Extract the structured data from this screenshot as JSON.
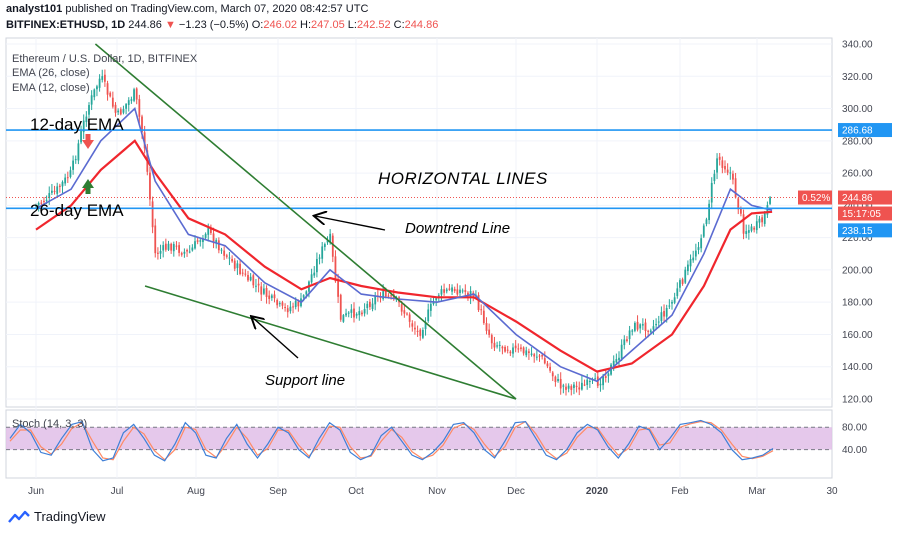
{
  "header": {
    "publisher": "analyst101",
    "published_text": "published on TradingView.com, March 07, 2020 08:42:57 UTC",
    "symbol": "BITFINEX:ETHUSD, 1D",
    "last": "244.86",
    "change": "−1.23 (−0.5%)",
    "o_label": "O:",
    "o": "246.02",
    "h_label": "H:",
    "h": "247.05",
    "l_label": "L:",
    "l": "242.52",
    "c_label": "C:",
    "c": "244.86"
  },
  "legend": {
    "title": "Ethereum / U.S. Dollar, 1D, BITFINEX",
    "ema26": "EMA (26, close)",
    "ema12": "EMA (12, close)"
  },
  "annotations": {
    "ema12": "12-day EMA",
    "ema26": "26-day EMA",
    "horizontal": "HORIZONTAL LINES",
    "downtrend": "Downtrend Line",
    "support": "Support line"
  },
  "badges": {
    "resistance": "286.68",
    "pct": "0.52%",
    "price": "244.86",
    "countdown": "15:17:05",
    "support_level": "238.15"
  },
  "stoch": {
    "label": "Stoch (14, 3, 3)",
    "levels": [
      "80.00",
      "40.00"
    ]
  },
  "footer": {
    "brand": "TradingView"
  },
  "colors": {
    "up": "#26a69a",
    "down": "#ef5350",
    "ema12": "#5b6bd1",
    "ema26": "#f0262d",
    "trend": "#2e7d32",
    "hline": "#2196f3",
    "stoch_bg": "#e1bee7",
    "k": "#3f7fd6",
    "d": "#ff8a65"
  },
  "chart_data": {
    "type": "candlestick",
    "price_axis": {
      "min": 120,
      "max": 340,
      "ticks": [
        "340.00",
        "320.00",
        "300.00",
        "280.00",
        "260.00",
        "240.00",
        "220.00",
        "200.00",
        "180.00",
        "160.00",
        "140.00",
        "120.00"
      ]
    },
    "time_axis": [
      "Jun",
      "Jul",
      "Aug",
      "Sep",
      "Oct",
      "Nov",
      "Dec",
      "2020",
      "Feb",
      "Mar",
      "30"
    ],
    "horizontal_lines": [
      286.68,
      238.15
    ],
    "price_line": 244.86,
    "downtrend_line": {
      "from": [
        "Jun 23",
        340
      ],
      "to": [
        "Dec 1",
        120
      ]
    },
    "support_line": {
      "from": [
        "Jul 12",
        190
      ],
      "to": [
        "Dec 1",
        120
      ]
    },
    "close_path": [
      {
        "t": "Jun 1",
        "v": 240
      },
      {
        "t": "Jun 8",
        "v": 248
      },
      {
        "t": "Jun 14",
        "v": 260
      },
      {
        "t": "Jun 20",
        "v": 300
      },
      {
        "t": "Jun 25",
        "v": 320
      },
      {
        "t": "Jul 1",
        "v": 295
      },
      {
        "t": "Jul 8",
        "v": 310
      },
      {
        "t": "Jul 12",
        "v": 275
      },
      {
        "t": "Jul 16",
        "v": 210
      },
      {
        "t": "Jul 22",
        "v": 215
      },
      {
        "t": "Jul 29",
        "v": 210
      },
      {
        "t": "Aug 5",
        "v": 225
      },
      {
        "t": "Aug 12",
        "v": 210
      },
      {
        "t": "Aug 20",
        "v": 195
      },
      {
        "t": "Aug 27",
        "v": 185
      },
      {
        "t": "Sep 3",
        "v": 175
      },
      {
        "t": "Sep 10",
        "v": 180
      },
      {
        "t": "Sep 17",
        "v": 210
      },
      {
        "t": "Sep 21",
        "v": 220
      },
      {
        "t": "Sep 25",
        "v": 170
      },
      {
        "t": "Oct 3",
        "v": 175
      },
      {
        "t": "Oct 10",
        "v": 185
      },
      {
        "t": "Oct 17",
        "v": 180
      },
      {
        "t": "Oct 25",
        "v": 160
      },
      {
        "t": "Nov 1",
        "v": 185
      },
      {
        "t": "Nov 8",
        "v": 188
      },
      {
        "t": "Nov 15",
        "v": 185
      },
      {
        "t": "Nov 22",
        "v": 155
      },
      {
        "t": "Dec 1",
        "v": 150
      },
      {
        "t": "Dec 10",
        "v": 147
      },
      {
        "t": "Dec 18",
        "v": 128
      },
      {
        "t": "Dec 25",
        "v": 128
      },
      {
        "t": "Jan 1",
        "v": 130
      },
      {
        "t": "Jan 8",
        "v": 143
      },
      {
        "t": "Jan 14",
        "v": 165
      },
      {
        "t": "Jan 22",
        "v": 165
      },
      {
        "t": "Jan 29",
        "v": 180
      },
      {
        "t": "Feb 5",
        "v": 205
      },
      {
        "t": "Feb 10",
        "v": 225
      },
      {
        "t": "Feb 15",
        "v": 270
      },
      {
        "t": "Feb 20",
        "v": 260
      },
      {
        "t": "Feb 25",
        "v": 225
      },
      {
        "t": "Feb 28",
        "v": 225
      },
      {
        "t": "Mar 3",
        "v": 230
      },
      {
        "t": "Mar 7",
        "v": 245
      }
    ],
    "ema12_path": [
      {
        "t": "Jun 1",
        "v": 238
      },
      {
        "t": "Jun 14",
        "v": 250
      },
      {
        "t": "Jun 25",
        "v": 280
      },
      {
        "t": "Jul 8",
        "v": 300
      },
      {
        "t": "Jul 16",
        "v": 255
      },
      {
        "t": "Jul 29",
        "v": 222
      },
      {
        "t": "Aug 12",
        "v": 215
      },
      {
        "t": "Aug 27",
        "v": 192
      },
      {
        "t": "Sep 10",
        "v": 180
      },
      {
        "t": "Sep 21",
        "v": 200
      },
      {
        "t": "Oct 3",
        "v": 185
      },
      {
        "t": "Oct 17",
        "v": 182
      },
      {
        "t": "Nov 1",
        "v": 180
      },
      {
        "t": "Nov 15",
        "v": 185
      },
      {
        "t": "Dec 1",
        "v": 160
      },
      {
        "t": "Dec 18",
        "v": 140
      },
      {
        "t": "Jan 1",
        "v": 131
      },
      {
        "t": "Jan 14",
        "v": 150
      },
      {
        "t": "Jan 29",
        "v": 172
      },
      {
        "t": "Feb 10",
        "v": 210
      },
      {
        "t": "Feb 20",
        "v": 250
      },
      {
        "t": "Feb 28",
        "v": 240
      },
      {
        "t": "Mar 7",
        "v": 237
      }
    ],
    "ema26_path": [
      {
        "t": "Jun 1",
        "v": 225
      },
      {
        "t": "Jun 14",
        "v": 240
      },
      {
        "t": "Jun 25",
        "v": 262
      },
      {
        "t": "Jul 8",
        "v": 280
      },
      {
        "t": "Jul 16",
        "v": 260
      },
      {
        "t": "Jul 29",
        "v": 232
      },
      {
        "t": "Aug 12",
        "v": 222
      },
      {
        "t": "Aug 27",
        "v": 202
      },
      {
        "t": "Sep 10",
        "v": 188
      },
      {
        "t": "Sep 21",
        "v": 195
      },
      {
        "t": "Oct 3",
        "v": 190
      },
      {
        "t": "Oct 17",
        "v": 186
      },
      {
        "t": "Nov 1",
        "v": 183
      },
      {
        "t": "Nov 15",
        "v": 183
      },
      {
        "t": "Dec 1",
        "v": 168
      },
      {
        "t": "Dec 18",
        "v": 150
      },
      {
        "t": "Jan 1",
        "v": 137
      },
      {
        "t": "Jan 14",
        "v": 142
      },
      {
        "t": "Jan 29",
        "v": 160
      },
      {
        "t": "Feb 10",
        "v": 190
      },
      {
        "t": "Feb 20",
        "v": 225
      },
      {
        "t": "Feb 28",
        "v": 235
      },
      {
        "t": "Mar 7",
        "v": 236
      }
    ],
    "stoch_k": [
      60,
      85,
      70,
      35,
      30,
      60,
      85,
      90,
      40,
      20,
      25,
      70,
      85,
      60,
      30,
      20,
      50,
      88,
      70,
      30,
      25,
      60,
      85,
      50,
      25,
      50,
      80,
      70,
      40,
      25,
      60,
      88,
      75,
      35,
      22,
      30,
      65,
      80,
      55,
      30,
      22,
      35,
      55,
      85,
      88,
      70,
      40,
      25,
      55,
      88,
      90,
      60,
      30,
      22,
      40,
      70,
      85,
      75,
      45,
      25,
      50,
      82,
      75,
      40,
      60,
      85,
      88,
      92,
      85,
      70,
      40,
      22,
      25,
      30,
      42
    ],
    "stoch_d": [
      55,
      75,
      75,
      45,
      32,
      50,
      78,
      88,
      55,
      25,
      22,
      55,
      80,
      68,
      38,
      22,
      40,
      80,
      76,
      40,
      26,
      50,
      80,
      60,
      30,
      42,
      75,
      74,
      48,
      28,
      50,
      82,
      80,
      45,
      25,
      28,
      55,
      76,
      62,
      36,
      24,
      30,
      48,
      78,
      86,
      76,
      50,
      28,
      45,
      80,
      90,
      68,
      38,
      24,
      34,
      62,
      80,
      78,
      52,
      30,
      42,
      75,
      78,
      48,
      52,
      80,
      86,
      90,
      88,
      75,
      50,
      28,
      24,
      28,
      38
    ],
    "stoch_levels": [
      80,
      40
    ]
  }
}
